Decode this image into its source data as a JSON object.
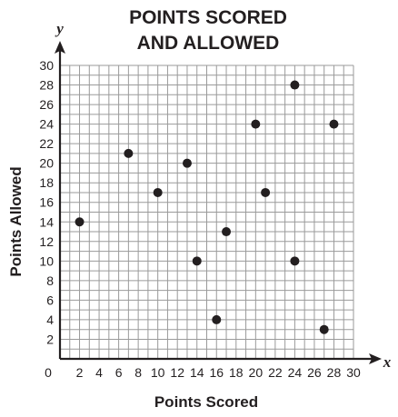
{
  "chart_data": {
    "type": "scatter",
    "title_lines": [
      "POINTS SCORED",
      "AND ALLOWED"
    ],
    "xlabel": "Points Scored",
    "ylabel": "Points Allowed",
    "x_axis_letter": "x",
    "y_axis_letter": "y",
    "xlim": [
      0,
      30
    ],
    "ylim": [
      0,
      30
    ],
    "x_ticks": [
      0,
      2,
      4,
      6,
      8,
      10,
      12,
      14,
      16,
      18,
      20,
      22,
      24,
      26,
      28,
      30
    ],
    "y_ticks": [
      2,
      4,
      6,
      8,
      10,
      12,
      14,
      16,
      18,
      20,
      22,
      24,
      26,
      28,
      30
    ],
    "grid": true,
    "grid_step": 1,
    "point_color": "#231f20",
    "points": [
      {
        "x": 2,
        "y": 14
      },
      {
        "x": 7,
        "y": 21
      },
      {
        "x": 10,
        "y": 17
      },
      {
        "x": 13,
        "y": 20
      },
      {
        "x": 14,
        "y": 10
      },
      {
        "x": 16,
        "y": 4
      },
      {
        "x": 17,
        "y": 13
      },
      {
        "x": 20,
        "y": 24
      },
      {
        "x": 21,
        "y": 17
      },
      {
        "x": 24,
        "y": 28
      },
      {
        "x": 24,
        "y": 10
      },
      {
        "x": 27,
        "y": 3
      },
      {
        "x": 28,
        "y": 24
      }
    ]
  }
}
